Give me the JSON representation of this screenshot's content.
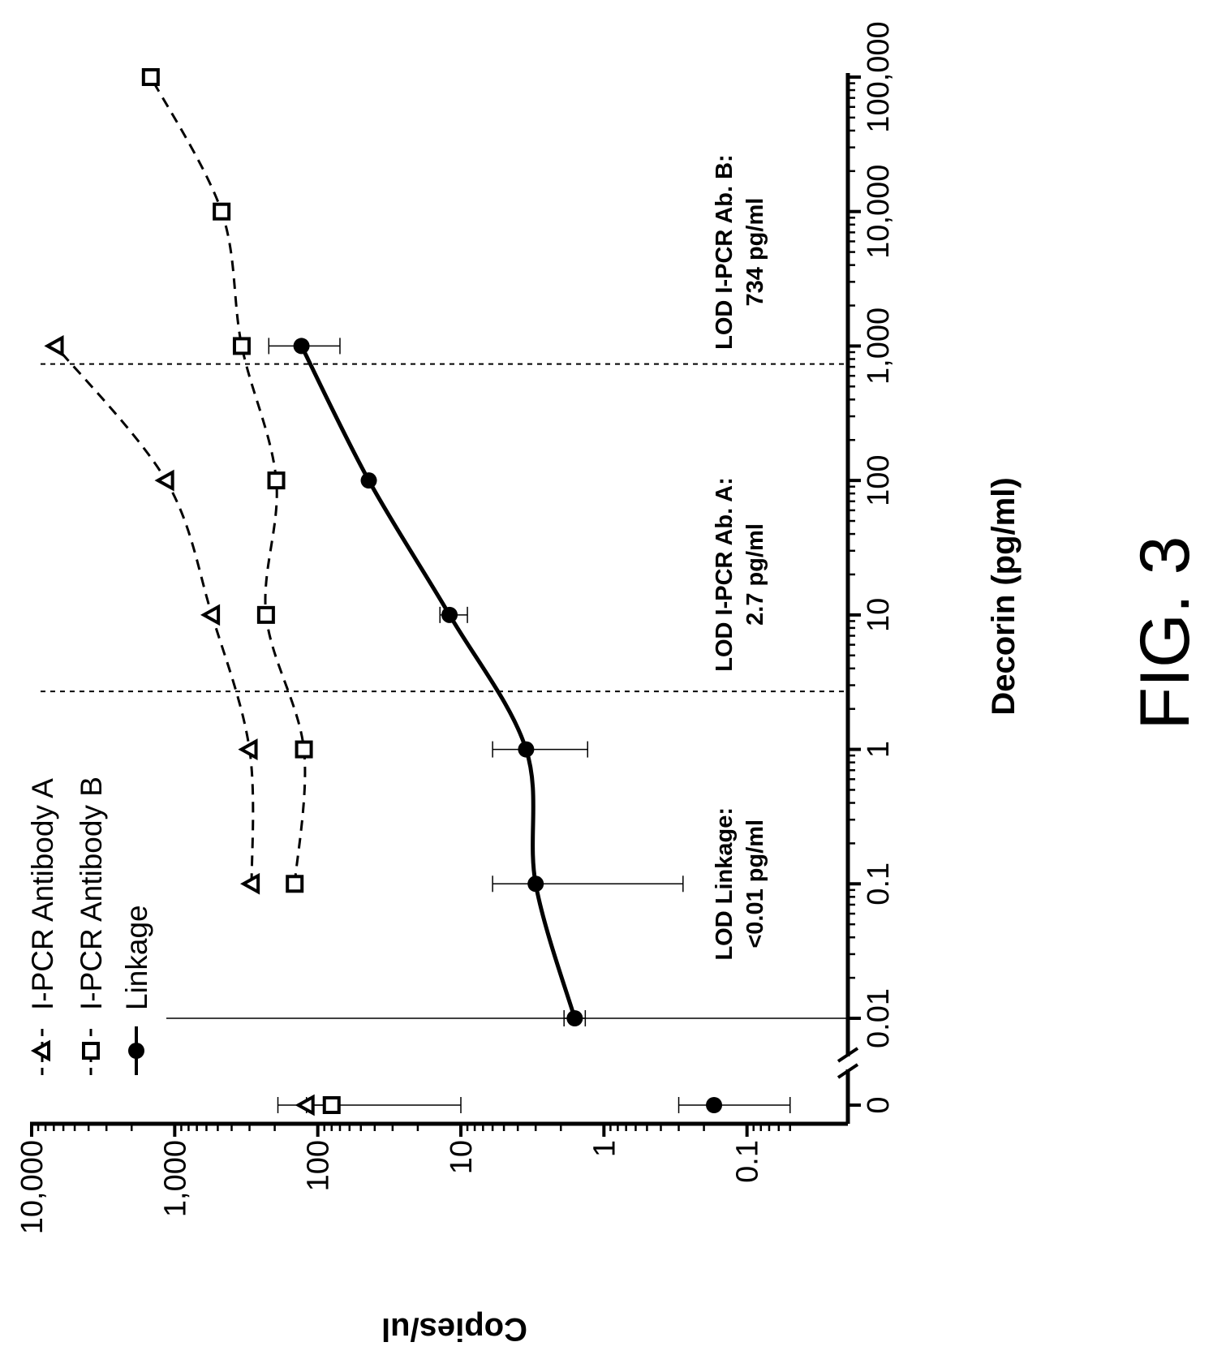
{
  "chart_data": {
    "type": "scatter",
    "orientation": "rotated-90-ccw",
    "figure_label": "FIG. 3",
    "xlabel": "Decorin (pg/ml)",
    "ylabel": "Copies/ul",
    "x_scale": "log",
    "y_scale": "log",
    "x_ticks": [
      {
        "value": 0,
        "label": "0"
      },
      {
        "value": 0.01,
        "label": "0.01"
      },
      {
        "value": 0.1,
        "label": "0.1"
      },
      {
        "value": 1,
        "label": "1"
      },
      {
        "value": 10,
        "label": "10"
      },
      {
        "value": 100,
        "label": "100"
      },
      {
        "value": 1000,
        "label": "1,000"
      },
      {
        "value": 10000,
        "label": "10,000"
      },
      {
        "value": 100000,
        "label": "100,000"
      }
    ],
    "y_ticks": [
      {
        "value": 10000,
        "label": "10,000"
      },
      {
        "value": 1000,
        "label": "1,000"
      },
      {
        "value": 100,
        "label": "100"
      },
      {
        "value": 10,
        "label": "10"
      },
      {
        "value": 1,
        "label": "1"
      },
      {
        "value": 0.1,
        "label": "0.1"
      }
    ],
    "xlim": [
      0.01,
      100000
    ],
    "ylim": [
      0.05,
      10000
    ],
    "x_axis_break": "between 0 and 0.01",
    "grid": false,
    "legend_position": "top-left",
    "series": [
      {
        "name": "I-PCR Antibody A",
        "marker": "triangle",
        "line": "dashed",
        "points": [
          {
            "x": 0,
            "y": 120,
            "err_low": 75,
            "err_high": 190
          },
          {
            "x": 0.1,
            "y": 290
          },
          {
            "x": 1,
            "y": 300
          },
          {
            "x": 10,
            "y": 550
          },
          {
            "x": 100,
            "y": 1150
          },
          {
            "x": 1000,
            "y": 6800
          }
        ]
      },
      {
        "name": "I-PCR Antibody B",
        "marker": "square",
        "line": "dashed",
        "points": [
          {
            "x": 0,
            "y": 80,
            "err_low": 10,
            "err_high": 120
          },
          {
            "x": 0.1,
            "y": 145
          },
          {
            "x": 1,
            "y": 125
          },
          {
            "x": 10,
            "y": 230
          },
          {
            "x": 100,
            "y": 195
          },
          {
            "x": 1000,
            "y": 340
          },
          {
            "x": 10000,
            "y": 470
          },
          {
            "x": 100000,
            "y": 1470
          }
        ]
      },
      {
        "name": "Linkage",
        "marker": "circle",
        "line": "solid",
        "points": [
          {
            "x": 0,
            "y": 0.17,
            "err_low": 0.05,
            "err_high": 0.3
          },
          {
            "x": 0.01,
            "y": 1.6,
            "err_low": 1.35,
            "err_high": 1.9
          },
          {
            "x": 0.1,
            "y": 3.0,
            "err_low": 0.28,
            "err_high": 6.0
          },
          {
            "x": 1,
            "y": 3.5,
            "err_low": 1.3,
            "err_high": 6.0
          },
          {
            "x": 10,
            "y": 12,
            "err_low": 9,
            "err_high": 14
          },
          {
            "x": 100,
            "y": 44
          },
          {
            "x": 1000,
            "y": 130,
            "err_low": 70,
            "err_high": 220
          }
        ]
      }
    ],
    "reference_lines": [
      {
        "x": 0.01,
        "style": "solid"
      },
      {
        "x": 2.7,
        "style": "dotted"
      },
      {
        "x": 734,
        "style": "dotted"
      }
    ],
    "annotations": [
      {
        "lines": [
          "LOD Linkage:",
          "<0.01 pg/ml"
        ],
        "x": 0.1
      },
      {
        "lines": [
          "LOD I-PCR Ab. A:",
          "2.7 pg/ml"
        ],
        "x": 20
      },
      {
        "lines": [
          "LOD I-PCR Ab. B:",
          "734 pg/ml"
        ],
        "x": 5000
      }
    ]
  }
}
